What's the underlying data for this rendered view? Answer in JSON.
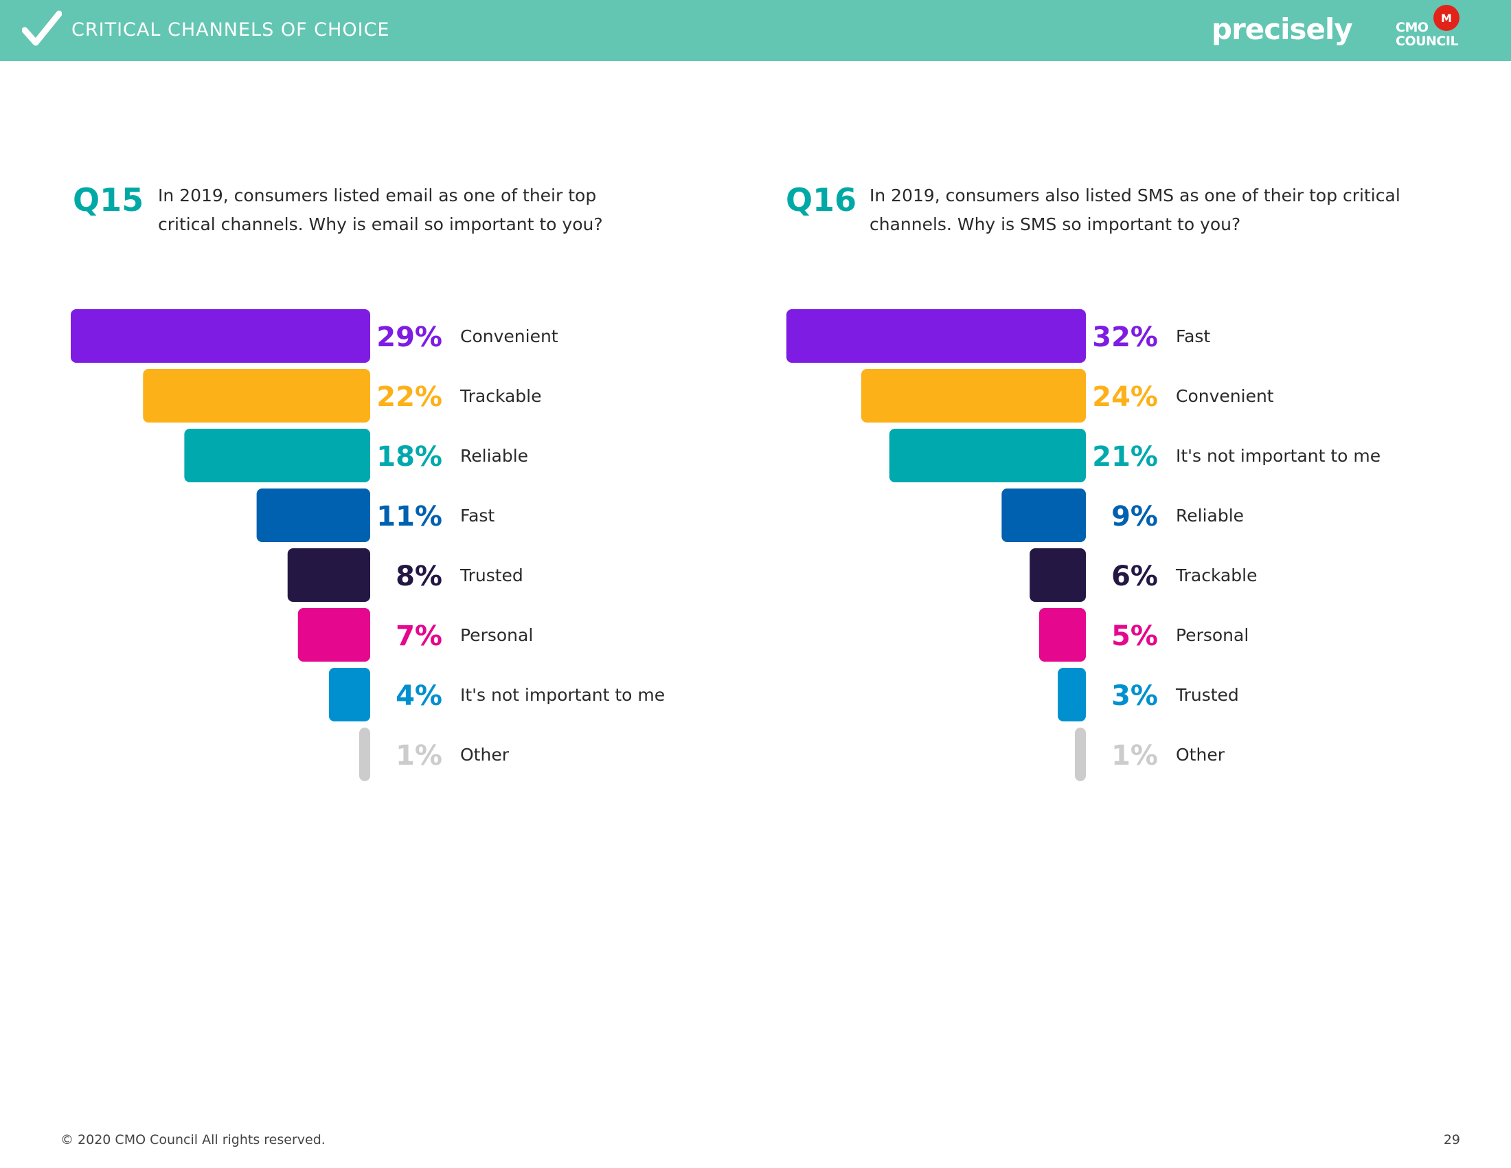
{
  "header": {
    "section_title": "CRITICAL CHANNELS OF CHOICE",
    "brand": "precisely",
    "partner_logo_text": [
      "CMO",
      "COUNCIL"
    ],
    "icon": "checkmark-icon"
  },
  "q15": {
    "number": "Q15",
    "text": "In 2019, consumers listed email as one of their top critical channels. Why is email so important to you?"
  },
  "q16": {
    "number": "Q16",
    "text": "In 2019, consumers also listed SMS as one of their top critical channels. Why is SMS so important to you?"
  },
  "chart_data": [
    {
      "type": "bar",
      "orientation": "horizontal",
      "title": "",
      "categories": [
        "Convenient",
        "Trackable",
        "Reliable",
        "Fast",
        "Trusted",
        "Personal",
        "It's not important to me",
        "Other"
      ],
      "values": [
        29,
        22,
        18,
        11,
        8,
        7,
        4,
        1
      ],
      "value_labels": [
        "29%",
        "22%",
        "18%",
        "11%",
        "8%",
        "7%",
        "4%",
        "1%"
      ],
      "colors": [
        "#7e1ce3",
        "#fdb119",
        "#00a9ad",
        "#0061b0",
        "#241744",
        "#e5078d",
        "#0090cf",
        "#cccccc"
      ],
      "xlim": [
        0,
        29
      ],
      "legend": "none",
      "grid": false
    },
    {
      "type": "bar",
      "orientation": "horizontal",
      "title": "",
      "categories": [
        "Fast",
        "Convenient",
        "It's not important to me",
        "Reliable",
        "Trackable",
        "Personal",
        "Trusted",
        "Other"
      ],
      "values": [
        32,
        24,
        21,
        9,
        6,
        5,
        3,
        1
      ],
      "value_labels": [
        "32%",
        "24%",
        "21%",
        "9%",
        "6%",
        "5%",
        "3%",
        "1%"
      ],
      "colors": [
        "#7e1ce3",
        "#fdb119",
        "#00a9ad",
        "#0061b0",
        "#241744",
        "#e5078d",
        "#0090cf",
        "#cccccc"
      ],
      "xlim": [
        0,
        32
      ],
      "legend": "none",
      "grid": false
    }
  ],
  "footer": {
    "copyright": "© 2020 CMO Council  All rights reserved.",
    "page_number": "29"
  }
}
